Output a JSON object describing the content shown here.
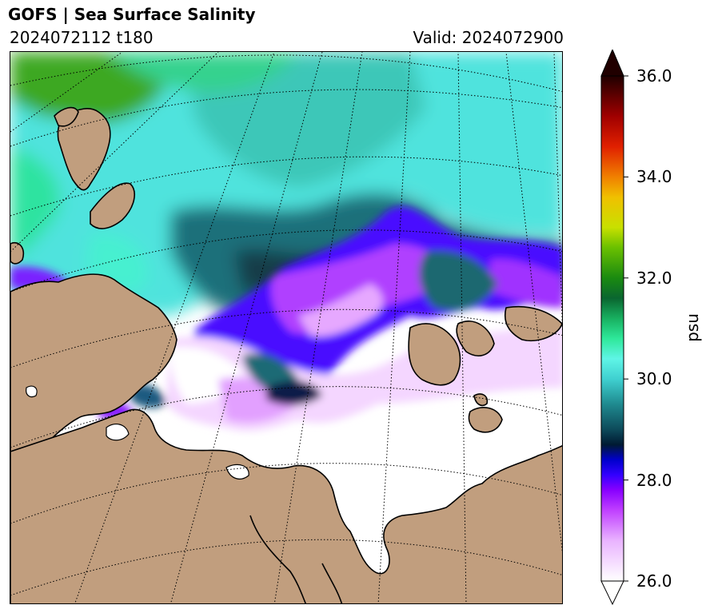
{
  "header": {
    "title": "GOFS  |  Sea Surface Salinity",
    "run": "2024072112 t180",
    "valid": "Valid: 2024072900"
  },
  "colorbar": {
    "min": 26.0,
    "max": 36.0,
    "ticks": [
      "26.0",
      "28.0",
      "30.0",
      "32.0",
      "34.0",
      "36.0"
    ],
    "tick_values": [
      26,
      28,
      30,
      32,
      34,
      36
    ],
    "unit": "psu",
    "extend": "both",
    "stops": [
      {
        "v": 26.0,
        "c": "#ffffff"
      },
      {
        "v": 26.8,
        "c": "#e9b3ff"
      },
      {
        "v": 27.4,
        "c": "#c040ff"
      },
      {
        "v": 27.8,
        "c": "#8800ff"
      },
      {
        "v": 28.1,
        "c": "#3300ff"
      },
      {
        "v": 28.4,
        "c": "#0000cc"
      },
      {
        "v": 28.7,
        "c": "#001a33"
      },
      {
        "v": 29.0,
        "c": "#0d4a5a"
      },
      {
        "v": 29.5,
        "c": "#1f8a8f"
      },
      {
        "v": 30.0,
        "c": "#3fd0d0"
      },
      {
        "v": 30.4,
        "c": "#5ff5e6"
      },
      {
        "v": 30.8,
        "c": "#2ee89a"
      },
      {
        "v": 31.2,
        "c": "#18b060"
      },
      {
        "v": 31.6,
        "c": "#0a6630"
      },
      {
        "v": 32.0,
        "c": "#1a8a10"
      },
      {
        "v": 32.6,
        "c": "#6ac000"
      },
      {
        "v": 33.0,
        "c": "#c8e000"
      },
      {
        "v": 33.6,
        "c": "#f0c000"
      },
      {
        "v": 34.0,
        "c": "#f08000"
      },
      {
        "v": 34.6,
        "c": "#e02000"
      },
      {
        "v": 35.2,
        "c": "#a00000"
      },
      {
        "v": 36.0,
        "c": "#200000"
      }
    ],
    "over_color": "#200000",
    "under_color": "#ffffff"
  },
  "map": {
    "land_color": "#c19e7e",
    "no_data_color": "#ffffff"
  }
}
